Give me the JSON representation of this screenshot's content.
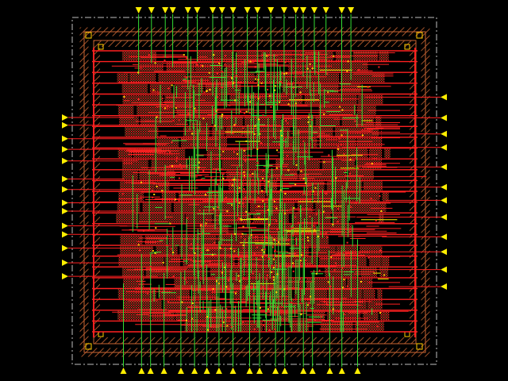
{
  "layout": {
    "background": "#000000",
    "colors": {
      "metal1": "#ff2020",
      "metal2": "#33dd33",
      "pin": "#ffee00",
      "via": "#ffcc00",
      "cell_fill": "#ff1a1a",
      "ring": "#c86432",
      "boundary": "#c0c0c0"
    },
    "core_rows": 26,
    "pins": {
      "top": 19,
      "bottom": 18,
      "left": 14,
      "right": 12
    }
  }
}
